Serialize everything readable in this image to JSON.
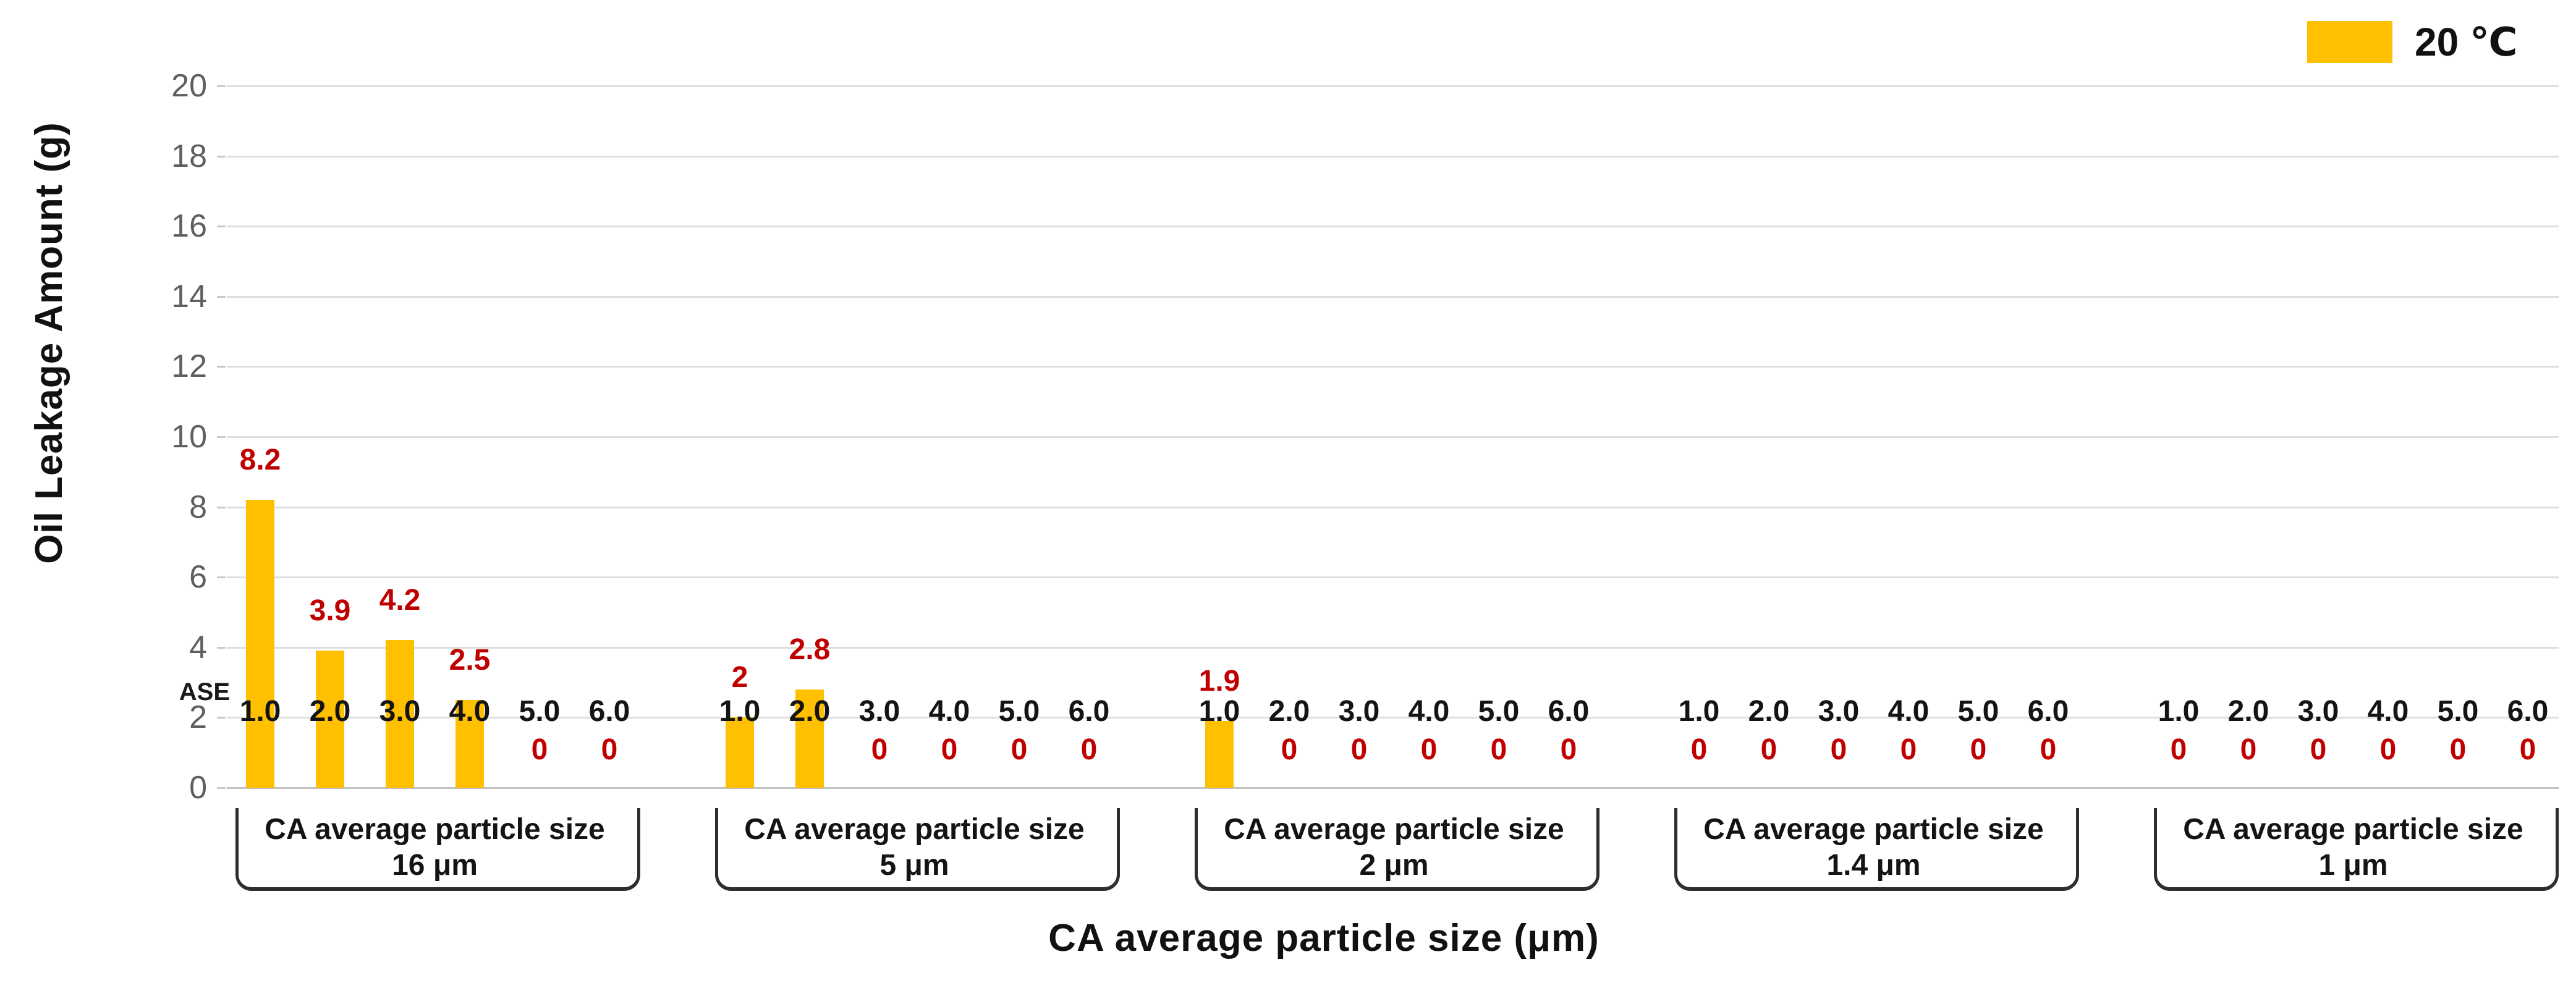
{
  "chart_data": {
    "type": "bar",
    "title": "",
    "ylabel": "Oil Leakage Amount (g)",
    "xlabel": "CA average particle size (μm)",
    "row_header": "ASE",
    "ylim": [
      0,
      20
    ],
    "yticks": [
      0,
      2,
      4,
      6,
      8,
      10,
      12,
      14,
      16,
      18,
      20
    ],
    "grid": "horizontal",
    "legend": {
      "position": "top-right",
      "series_name": "20 ℃",
      "swatch_color": "#FFC000"
    },
    "colors": {
      "bar": "#FFC000",
      "value_label": "#C00000",
      "gridline": "#dedede",
      "baseline": "#c2c2c2",
      "axis_text": "#5f5f5f",
      "bracket": "#2e2e2e"
    },
    "groups": [
      {
        "group_label_line1": "CA average particle size",
        "group_label_line2": "16 μm",
        "x": [
          "1.0",
          "2.0",
          "3.0",
          "4.0",
          "5.0",
          "6.0"
        ],
        "values": [
          8.2,
          3.9,
          4.2,
          2.5,
          0,
          0
        ],
        "value_labels": [
          "8.2",
          "3.9",
          "4.2",
          "2.5",
          "0",
          "0"
        ]
      },
      {
        "group_label_line1": "CA average particle size",
        "group_label_line2": "5 μm",
        "x": [
          "1.0",
          "2.0",
          "3.0",
          "4.0",
          "5.0",
          "6.0"
        ],
        "values": [
          2,
          2.8,
          0,
          0,
          0,
          0
        ],
        "value_labels": [
          "2",
          "2.8",
          "0",
          "0",
          "0",
          "0"
        ]
      },
      {
        "group_label_line1": "CA average particle size",
        "group_label_line2": "2 μm",
        "x": [
          "1.0",
          "2.0",
          "3.0",
          "4.0",
          "5.0",
          "6.0"
        ],
        "values": [
          1.9,
          0,
          0,
          0,
          0,
          0
        ],
        "value_labels": [
          "1.9",
          "0",
          "0",
          "0",
          "0",
          "0"
        ]
      },
      {
        "group_label_line1": "CA average particle size",
        "group_label_line2": "1.4 μm",
        "x": [
          "1.0",
          "2.0",
          "3.0",
          "4.0",
          "5.0",
          "6.0"
        ],
        "values": [
          0,
          0,
          0,
          0,
          0,
          0
        ],
        "value_labels": [
          "0",
          "0",
          "0",
          "0",
          "0",
          "0"
        ]
      },
      {
        "group_label_line1": "CA average particle size",
        "group_label_line2": "1 μm",
        "x": [
          "1.0",
          "2.0",
          "3.0",
          "4.0",
          "5.0",
          "6.0"
        ],
        "values": [
          0,
          0,
          0,
          0,
          0,
          0
        ],
        "value_labels": [
          "0",
          "0",
          "0",
          "0",
          "0",
          "0"
        ]
      }
    ]
  }
}
